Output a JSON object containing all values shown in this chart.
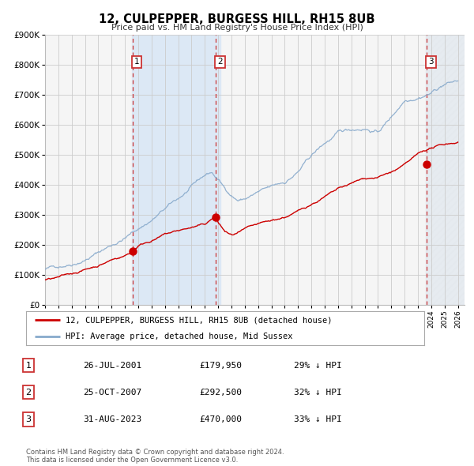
{
  "title": "12, CULPEPPER, BURGESS HILL, RH15 8UB",
  "subtitle": "Price paid vs. HM Land Registry's House Price Index (HPI)",
  "ylim": [
    0,
    900000
  ],
  "xlim_start": 1995.0,
  "xlim_end": 2026.5,
  "yticks": [
    0,
    100000,
    200000,
    300000,
    400000,
    500000,
    600000,
    700000,
    800000,
    900000
  ],
  "ytick_labels": [
    "£0",
    "£100K",
    "£200K",
    "£300K",
    "£400K",
    "£500K",
    "£600K",
    "£700K",
    "£800K",
    "£900K"
  ],
  "xticks": [
    1995,
    1996,
    1997,
    1998,
    1999,
    2000,
    2001,
    2002,
    2003,
    2004,
    2005,
    2006,
    2007,
    2008,
    2009,
    2010,
    2011,
    2012,
    2013,
    2014,
    2015,
    2016,
    2017,
    2018,
    2019,
    2020,
    2021,
    2022,
    2023,
    2024,
    2025,
    2026
  ],
  "sale_dates": [
    2001.57,
    2007.82,
    2023.66
  ],
  "sale_prices": [
    179950,
    292500,
    470000
  ],
  "sale_labels": [
    "1",
    "2",
    "3"
  ],
  "legend_line1": "12, CULPEPPER, BURGESS HILL, RH15 8UB (detached house)",
  "legend_line2": "HPI: Average price, detached house, Mid Sussex",
  "table_rows": [
    {
      "num": "1",
      "date": "26-JUL-2001",
      "price": "£179,950",
      "hpi": "29% ↓ HPI"
    },
    {
      "num": "2",
      "date": "25-OCT-2007",
      "price": "£292,500",
      "hpi": "32% ↓ HPI"
    },
    {
      "num": "3",
      "date": "31-AUG-2023",
      "price": "£470,000",
      "hpi": "33% ↓ HPI"
    }
  ],
  "footer1": "Contains HM Land Registry data © Crown copyright and database right 2024.",
  "footer2": "This data is licensed under the Open Government Licence v3.0.",
  "red_line_color": "#cc0000",
  "blue_line_color": "#88aacc",
  "plot_bg": "#f5f5f5",
  "grid_color": "#cccccc",
  "vline_color": "#cc3333",
  "highlight_bg": "#dce8f5",
  "hatch_bg": "#e8e8e8",
  "label_box_color": "#cc3333"
}
